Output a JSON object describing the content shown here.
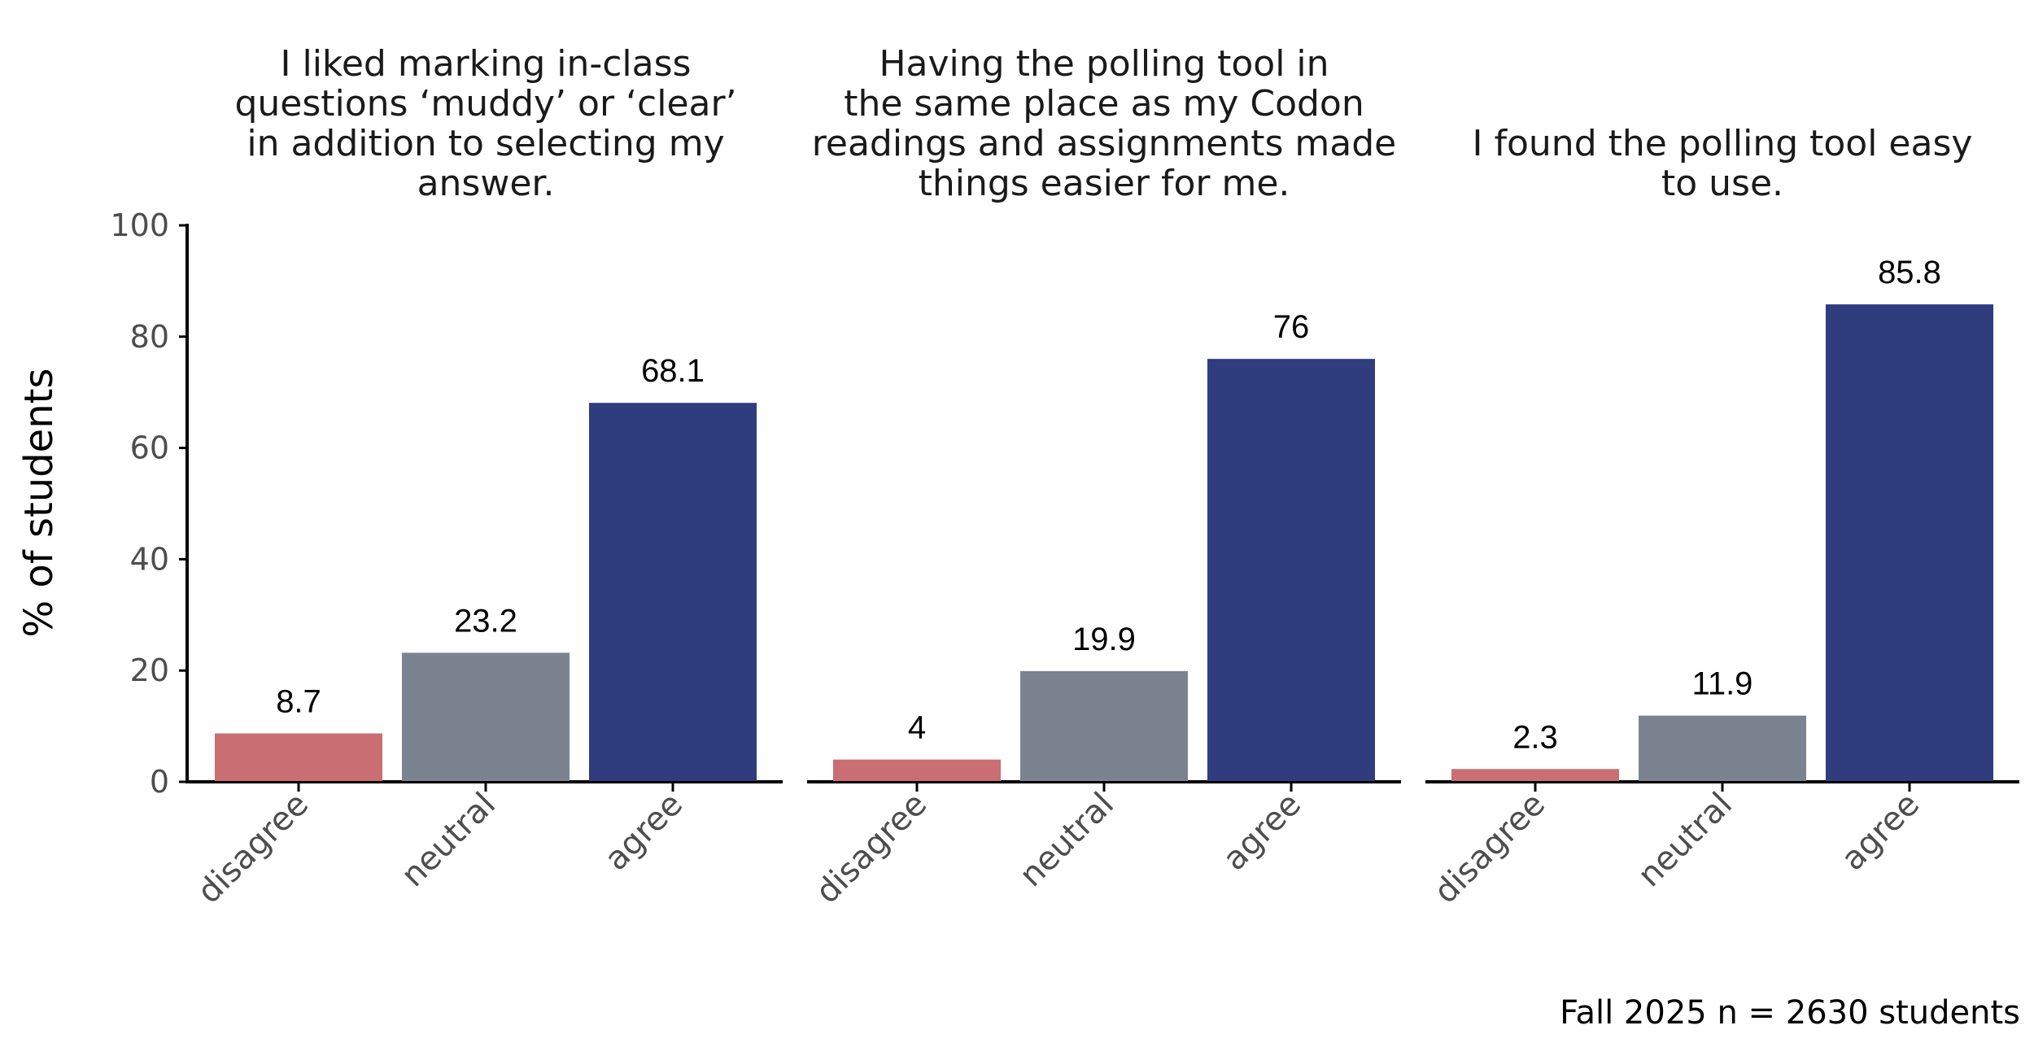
{
  "chart_data": {
    "type": "bar",
    "ylabel": "% of students",
    "ylim": [
      0,
      100
    ],
    "yticks": [
      0,
      20,
      40,
      60,
      80,
      100
    ],
    "categories": [
      "disagree",
      "neutral",
      "agree"
    ],
    "colors": {
      "disagree": "#C96E72",
      "neutral": "#7B8391",
      "agree": "#2F3C7E"
    },
    "caption": "Fall 2025 n = 2630 students",
    "panels": [
      {
        "title_lines": [
          "I liked marking in-class",
          "questions ‘muddy’ or ‘clear’",
          "in addition to selecting my",
          "answer."
        ],
        "values": [
          8.7,
          23.2,
          68.1
        ],
        "labels": [
          "8.7",
          "23.2",
          "68.1"
        ]
      },
      {
        "title_lines": [
          "Having the polling tool in",
          "the same place as my Codon",
          "readings and assignments made",
          "things easier for me."
        ],
        "values": [
          4,
          19.9,
          76
        ],
        "labels": [
          "4",
          "19.9",
          "76"
        ]
      },
      {
        "title_lines": [
          "I found the polling tool easy",
          "to use."
        ],
        "values": [
          2.3,
          11.9,
          85.8
        ],
        "labels": [
          "2.3",
          "11.9",
          "85.8"
        ]
      }
    ]
  }
}
